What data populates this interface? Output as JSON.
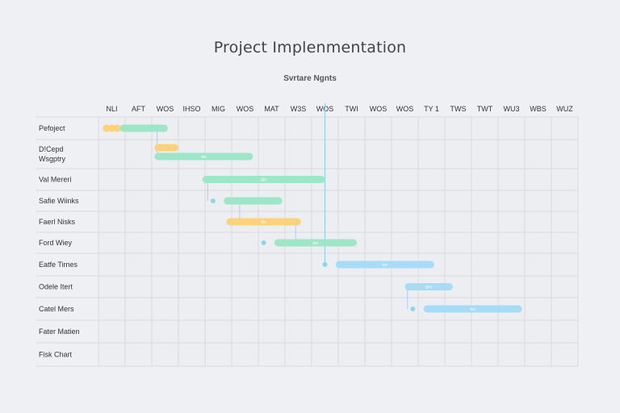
{
  "colors": {
    "green": "#9ee6c8",
    "yellow": "#ffd279",
    "blue": "#a6dcf5",
    "grid": "#d7dbe0",
    "gridBg": "#eceef1",
    "connector": "#b5c8e8",
    "today": "#8fd6ea"
  },
  "chart_data": {
    "type": "gantt",
    "title": "Project Implenmentation",
    "subtitle": "Svrtare Ngnts",
    "columns": [
      "NLI",
      "AFT",
      "WOS",
      "IHSO",
      "MIG",
      "WOS",
      "MAT",
      "W3S",
      "WOS",
      "TWI",
      "WOS",
      "WOS",
      "TY 1",
      "TWS",
      "TWT",
      "WU3",
      "WBS",
      "WUZ"
    ],
    "xlim": [
      0,
      18
    ],
    "today": 8.5,
    "grid": true,
    "tasks": [
      {
        "label": "Pefoject",
        "bars": [
          {
            "start": 0.2,
            "end": 0.8,
            "color": "yellow",
            "shape": "dots"
          },
          {
            "start": 0.8,
            "end": 2.6,
            "color": "green",
            "text": ""
          }
        ]
      },
      {
        "label": "D!Cepd Wsgptry",
        "bars": [
          {
            "start": 2.1,
            "end": 3.0,
            "color": "yellow",
            "text": ""
          },
          {
            "start": 2.1,
            "end": 5.8,
            "color": "green",
            "text": "tss"
          }
        ]
      },
      {
        "label": "Val Mereri",
        "bars": [
          {
            "start": 3.9,
            "end": 8.5,
            "color": "green",
            "text": "t0n"
          }
        ]
      },
      {
        "label": "Safie Wiinks",
        "bars": [
          {
            "start": 4.7,
            "end": 6.9,
            "color": "green",
            "text": ""
          }
        ],
        "milestone": 4.3
      },
      {
        "label": "Faerl Nisks",
        "bars": [
          {
            "start": 4.8,
            "end": 7.6,
            "color": "yellow",
            "text": "t0n"
          }
        ]
      },
      {
        "label": "Ford Wiey",
        "bars": [
          {
            "start": 6.6,
            "end": 9.7,
            "color": "green",
            "text": "ten"
          }
        ],
        "milestone": 6.2
      },
      {
        "label": "Eatfe Tirnes",
        "bars": [
          {
            "start": 8.9,
            "end": 12.6,
            "color": "blue",
            "text": "ten"
          }
        ],
        "milestone": 8.5
      },
      {
        "label": "Odele Itert",
        "bars": [
          {
            "start": 11.5,
            "end": 13.3,
            "color": "blue",
            "text": "den"
          }
        ]
      },
      {
        "label": "Catel Mers",
        "bars": [
          {
            "start": 12.2,
            "end": 15.9,
            "color": "blue",
            "text": "tes"
          }
        ],
        "milestone": 11.8
      },
      {
        "label": "Fater Matien",
        "bars": []
      },
      {
        "label": "Fisk Chart",
        "bars": []
      }
    ],
    "dependencies": [
      {
        "from_task": 0,
        "to_task": 1,
        "x": 2.2
      },
      {
        "from_task": 2,
        "to_task": 3,
        "x": 4.1
      },
      {
        "from_task": 3,
        "to_task": 4,
        "x": 5.3
      },
      {
        "from_task": 4,
        "to_task": 5,
        "x": 7.4
      },
      {
        "from_task": 7,
        "to_task": 8,
        "x": 11.6
      }
    ]
  }
}
